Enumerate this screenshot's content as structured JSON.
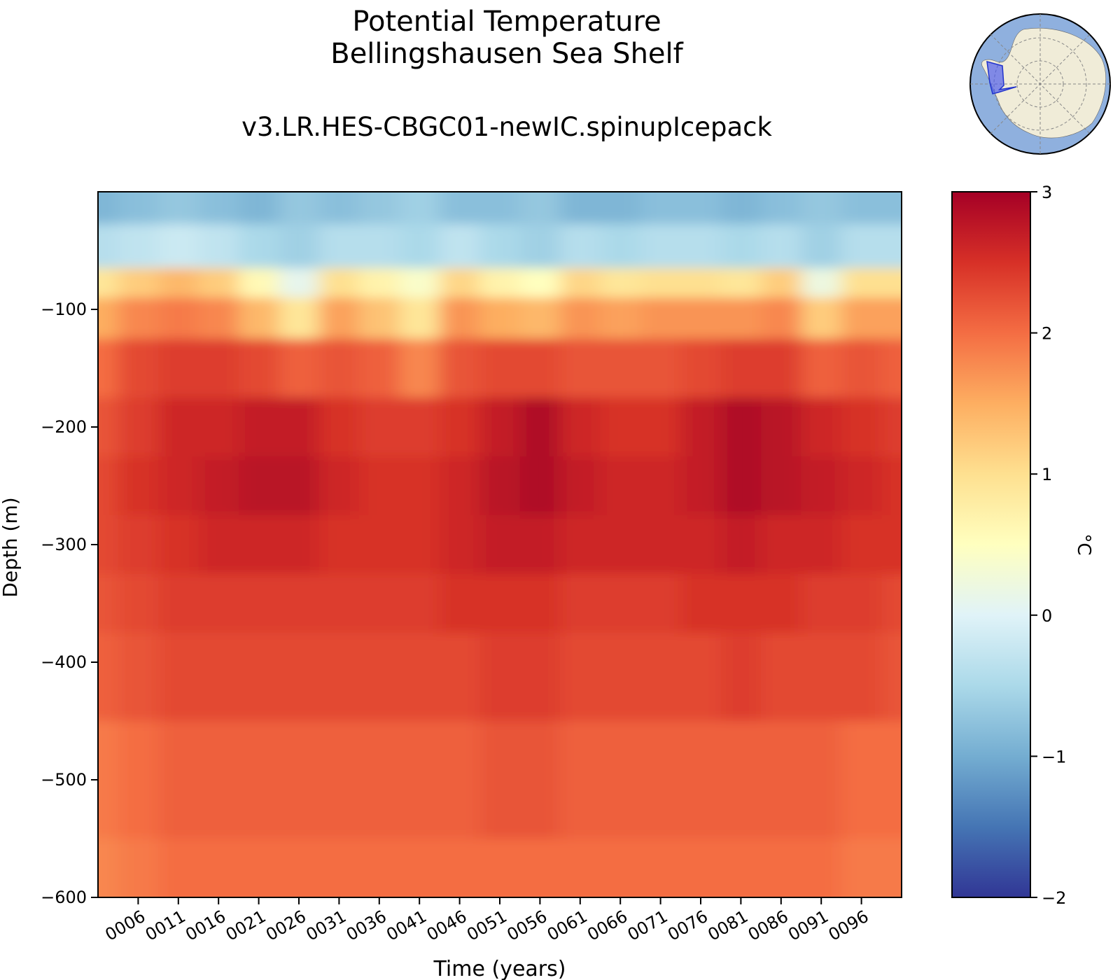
{
  "chart_data": {
    "type": "heatmap",
    "title": "Potential Temperature",
    "subtitle": "Bellingshausen Sea Shelf",
    "run_name": "v3.LR.HES-CBGC01-newIC.spinupIcepack",
    "xlabel": "Time (years)",
    "ylabel": "Depth (m)",
    "colorbar_label": "°C",
    "colormap": "RdYlBu_r",
    "colorbar_range": [
      -2,
      3
    ],
    "colorbar_ticks": [
      "3",
      "2",
      "1",
      "0",
      "−1",
      "−2"
    ],
    "ylim": [
      -600,
      0
    ],
    "y_ticks": [
      "−100",
      "−200",
      "−300",
      "−400",
      "−500",
      "−600"
    ],
    "xlim": [
      1,
      101
    ],
    "x_ticks": [
      "0006",
      "0011",
      "0016",
      "0021",
      "0026",
      "0031",
      "0036",
      "0041",
      "0046",
      "0051",
      "0056",
      "0061",
      "0066",
      "0071",
      "0076",
      "0081",
      "0086",
      "0091",
      "0096"
    ],
    "grid": false,
    "depths": [
      -5,
      -50,
      -80,
      -100,
      -150,
      -200,
      -250,
      -300,
      -350,
      -400,
      -500,
      -600
    ],
    "years": [
      1,
      6,
      11,
      16,
      21,
      26,
      31,
      36,
      41,
      46,
      51,
      56,
      61,
      66,
      71,
      76,
      81,
      86,
      91,
      96,
      101
    ],
    "values": [
      [
        -0.9,
        -0.8,
        -0.7,
        -0.8,
        -0.9,
        -0.7,
        -0.8,
        -0.7,
        -0.6,
        -0.8,
        -0.8,
        -0.7,
        -0.9,
        -0.9,
        -0.8,
        -0.8,
        -0.9,
        -0.8,
        -0.7,
        -0.8,
        -0.8
      ],
      [
        -0.4,
        -0.3,
        -0.2,
        -0.3,
        -0.5,
        -0.6,
        -0.4,
        -0.4,
        -0.5,
        -0.3,
        -0.5,
        -0.6,
        -0.4,
        -0.5,
        -0.4,
        -0.4,
        -0.5,
        -0.4,
        -0.6,
        -0.4,
        -0.4
      ],
      [
        0.9,
        1.2,
        1.4,
        1.2,
        0.6,
        0.1,
        1.0,
        0.7,
        0.4,
        1.1,
        0.7,
        0.5,
        1.1,
        0.9,
        1.0,
        1.0,
        0.9,
        1.2,
        0.2,
        1.0,
        1.0
      ],
      [
        1.5,
        1.8,
        1.9,
        1.8,
        1.4,
        0.9,
        1.6,
        1.3,
        0.9,
        1.7,
        1.5,
        1.4,
        1.7,
        1.6,
        1.7,
        1.7,
        1.7,
        1.8,
        1.2,
        1.6,
        1.6
      ],
      [
        2.0,
        2.3,
        2.4,
        2.4,
        2.3,
        2.1,
        2.2,
        2.1,
        1.8,
        2.2,
        2.3,
        2.3,
        2.2,
        2.2,
        2.2,
        2.3,
        2.4,
        2.4,
        2.1,
        2.2,
        2.1
      ],
      [
        2.2,
        2.4,
        2.6,
        2.6,
        2.7,
        2.7,
        2.5,
        2.4,
        2.4,
        2.5,
        2.7,
        2.9,
        2.6,
        2.5,
        2.5,
        2.7,
        2.9,
        2.8,
        2.6,
        2.5,
        2.4
      ],
      [
        2.3,
        2.5,
        2.6,
        2.7,
        2.8,
        2.8,
        2.6,
        2.5,
        2.5,
        2.6,
        2.8,
        2.9,
        2.7,
        2.6,
        2.6,
        2.7,
        2.9,
        2.8,
        2.7,
        2.6,
        2.5
      ],
      [
        2.3,
        2.4,
        2.5,
        2.6,
        2.6,
        2.6,
        2.5,
        2.5,
        2.5,
        2.6,
        2.7,
        2.7,
        2.6,
        2.6,
        2.6,
        2.6,
        2.7,
        2.6,
        2.6,
        2.5,
        2.5
      ],
      [
        2.2,
        2.3,
        2.4,
        2.4,
        2.4,
        2.4,
        2.4,
        2.4,
        2.4,
        2.5,
        2.5,
        2.5,
        2.4,
        2.4,
        2.4,
        2.5,
        2.5,
        2.5,
        2.4,
        2.4,
        2.3
      ],
      [
        2.1,
        2.2,
        2.3,
        2.3,
        2.3,
        2.3,
        2.3,
        2.3,
        2.3,
        2.3,
        2.4,
        2.4,
        2.3,
        2.3,
        2.3,
        2.3,
        2.4,
        2.3,
        2.3,
        2.3,
        2.2
      ],
      [
        1.9,
        2.0,
        2.1,
        2.1,
        2.1,
        2.1,
        2.1,
        2.1,
        2.1,
        2.1,
        2.2,
        2.2,
        2.1,
        2.1,
        2.1,
        2.1,
        2.1,
        2.1,
        2.1,
        2.0,
        2.0
      ],
      [
        1.8,
        1.9,
        2.0,
        2.0,
        2.0,
        2.0,
        2.0,
        2.0,
        2.0,
        2.0,
        2.0,
        2.0,
        2.0,
        2.0,
        2.0,
        2.0,
        2.0,
        2.0,
        2.0,
        1.9,
        1.9
      ]
    ]
  }
}
